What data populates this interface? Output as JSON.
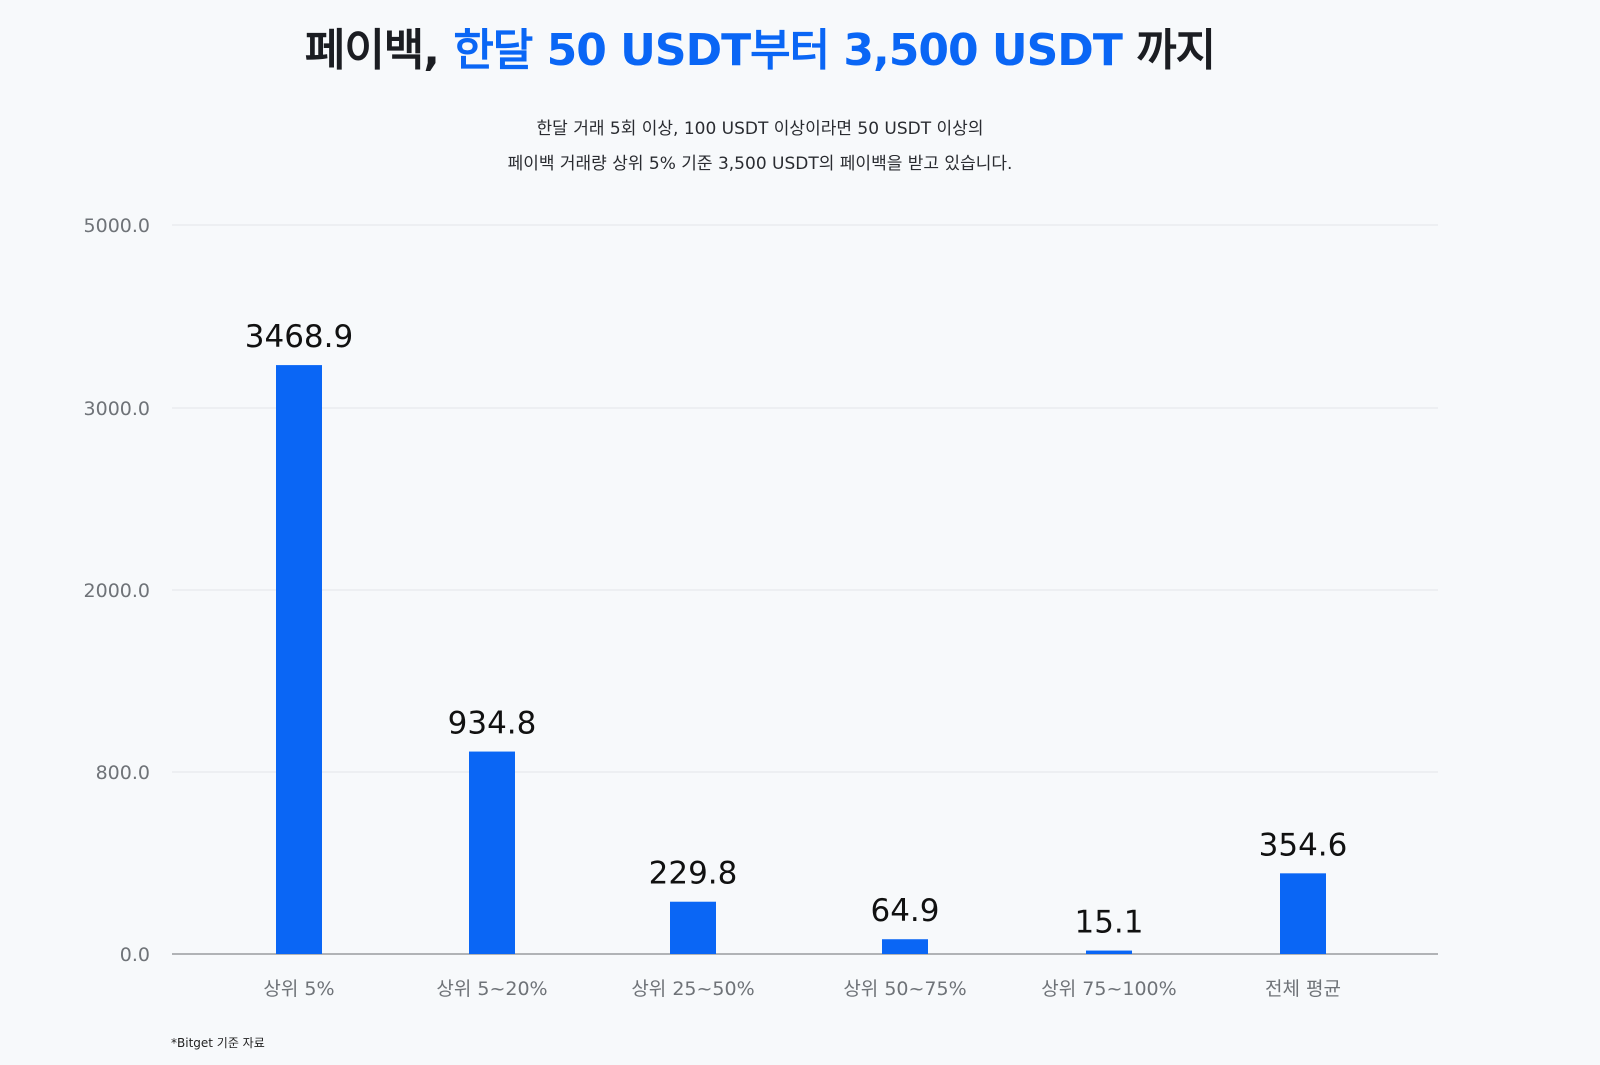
{
  "header": {
    "title_prefix": "페이백,",
    "title_accent": "한달 50 USDT부터 3,500 USDT",
    "title_suffix": "까지",
    "subtitle_line1": "한달 거래 5회 이상, 100 USDT 이상이라면 50 USDT 이상의",
    "subtitle_line2": "페이백 거래량 상위 5% 기준 3,500 USDT의 페이백을 받고 있습니다."
  },
  "footnote": "*Bitget 기준 자료",
  "colors": {
    "bar": "#0a66f5",
    "grid": "#e3e5e8",
    "axis": "#9a9ca0",
    "tick_label": "#6f7378",
    "value_label": "#111111"
  },
  "chart_data": {
    "type": "bar",
    "title": "",
    "xlabel": "",
    "ylabel": "",
    "categories": [
      "상위 5%",
      "상위 5~20%",
      "상위 25~50%",
      "상위 50~75%",
      "상위 75~100%",
      "전체 평균"
    ],
    "values": [
      3468.9,
      934.8,
      229.8,
      64.9,
      15.1,
      354.6
    ],
    "value_labels": [
      "3468.9",
      "934.8",
      "229.8",
      "64.9",
      "15.1",
      "354.6"
    ],
    "y_ticks": [
      0,
      800,
      2000,
      3000,
      5000
    ],
    "y_tick_labels": [
      "0.0",
      "800.0",
      "2000.0",
      "3000.0",
      "5000.0"
    ],
    "ylim": [
      0,
      5000
    ],
    "grid": true,
    "axis_scale": "piecewise"
  }
}
